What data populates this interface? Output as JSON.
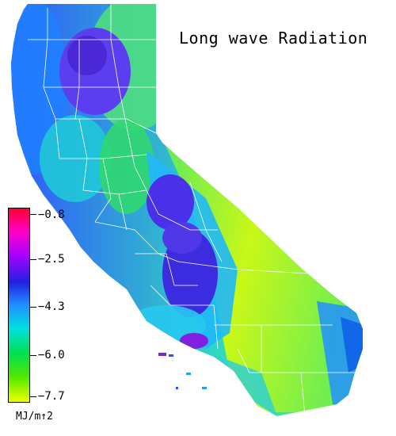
{
  "title": "Long wave Radiation",
  "legend": {
    "ticks": [
      "−0.8",
      "−2.5",
      "−4.3",
      "−6.0",
      "−7.7"
    ],
    "unit": "MJ/m↑2",
    "colors": [
      "#ff0040",
      "#ff00c8",
      "#a000ff",
      "#3010e0",
      "#2050ff",
      "#00b8ff",
      "#00e0a0",
      "#00e040",
      "#70f000",
      "#e8ff00"
    ]
  },
  "map": {
    "region": "California",
    "value_range": [
      -7.7,
      -0.8
    ],
    "palette_regions": {
      "northwest_coast": "#1f6fff",
      "sacramento_valley": "#5a3ef0",
      "northeast": "#40e070",
      "san_joaquin_valley": "#4a30e8",
      "sierra_nevada": "#20c0f0",
      "southeast_desert": "#b0f020",
      "southern_california": "#30d8c0",
      "southeast_corner": "#2090ff"
    },
    "border_color": "#ffffff"
  }
}
